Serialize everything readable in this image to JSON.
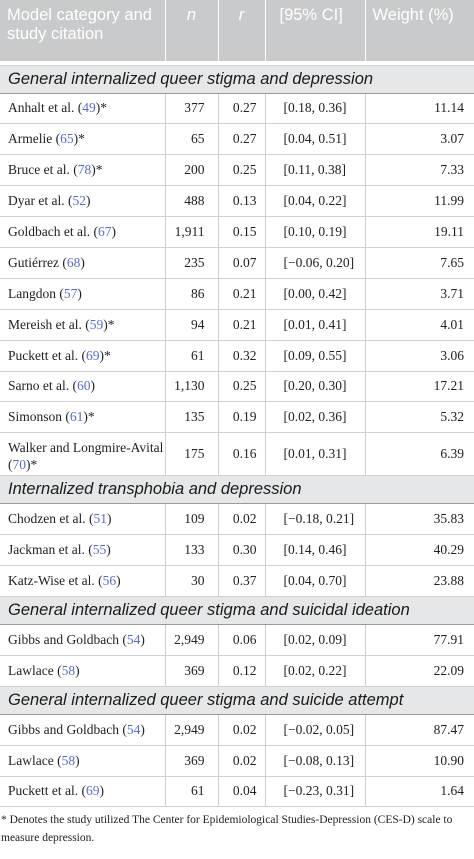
{
  "header": {
    "col1": "Model category and study citation",
    "col2": "n",
    "col3": "r",
    "col4": "[95% CI]",
    "col5": "Weight (%)"
  },
  "sections": [
    {
      "title": "General internalized queer stigma and depression",
      "rows": [
        {
          "name": "Anhalt et al. (",
          "ref": "49",
          "suffix": ")*",
          "n": "377",
          "r": "0.27",
          "ci": "[0.18, 0.36]",
          "weight": "11.14"
        },
        {
          "name": "Armelie (",
          "ref": "65",
          "suffix": ")*",
          "n": "65",
          "r": "0.27",
          "ci": "[0.04, 0.51]",
          "weight": "3.07"
        },
        {
          "name": "Bruce et al. (",
          "ref": "78",
          "suffix": ")*",
          "n": "200",
          "r": "0.25",
          "ci": "[0.11, 0.38]",
          "weight": "7.33"
        },
        {
          "name": "Dyar et al. (",
          "ref": "52",
          "suffix": ")",
          "n": "488",
          "r": "0.13",
          "ci": "[0.04, 0.22]",
          "weight": "11.99"
        },
        {
          "name": "Goldbach et al. (",
          "ref": "67",
          "suffix": ")",
          "n": "1,911",
          "r": "0.15",
          "ci": "[0.10, 0.19]",
          "weight": "19.11"
        },
        {
          "name": "Gutiérrez (",
          "ref": "68",
          "suffix": ")",
          "n": "235",
          "r": "0.07",
          "ci": "[−0.06, 0.20]",
          "weight": "7.65"
        },
        {
          "name": "Langdon (",
          "ref": "57",
          "suffix": ")",
          "n": "86",
          "r": "0.21",
          "ci": "[0.00, 0.42]",
          "weight": "3.71"
        },
        {
          "name": "Mereish et al. (",
          "ref": "59",
          "suffix": ")*",
          "n": "94",
          "r": "0.21",
          "ci": "[0.01, 0.41]",
          "weight": "4.01"
        },
        {
          "name": "Puckett et al. (",
          "ref": "69",
          "suffix": ")*",
          "n": "61",
          "r": "0.32",
          "ci": "[0.09, 0.55]",
          "weight": "3.06"
        },
        {
          "name": "Sarno et al. (",
          "ref": "60",
          "suffix": ")",
          "n": "1,130",
          "r": "0.25",
          "ci": "[0.20, 0.30]",
          "weight": "17.21"
        },
        {
          "name": "Simonson (",
          "ref": "61",
          "suffix": ")*",
          "n": "135",
          "r": "0.19",
          "ci": "[0.02, 0.36]",
          "weight": "5.32"
        },
        {
          "name": "Walker and Longmire-Avital (",
          "ref": "70",
          "suffix": ")*",
          "n": "175",
          "r": "0.16",
          "ci": "[0.01, 0.31]",
          "weight": "6.39"
        }
      ]
    },
    {
      "title": "Internalized transphobia and depression",
      "rows": [
        {
          "name": "Chodzen et al. (",
          "ref": "51",
          "suffix": ")",
          "n": "109",
          "r": "0.02",
          "ci": "[−0.18, 0.21]",
          "weight": "35.83"
        },
        {
          "name": "Jackman et al. (",
          "ref": "55",
          "suffix": ")",
          "n": "133",
          "r": "0.30",
          "ci": "[0.14, 0.46]",
          "weight": "40.29"
        },
        {
          "name": "Katz-Wise et al. (",
          "ref": "56",
          "suffix": ")",
          "n": "30",
          "r": "0.37",
          "ci": "[0.04, 0.70]",
          "weight": "23.88"
        }
      ]
    },
    {
      "title": "General internalized queer stigma and suicidal ideation",
      "rows": [
        {
          "name": "Gibbs and Goldbach (",
          "ref": "54",
          "suffix": ")",
          "n": "2,949",
          "r": "0.06",
          "ci": "[0.02, 0.09]",
          "weight": "77.91"
        },
        {
          "name": "Lawlace (",
          "ref": "58",
          "suffix": ")",
          "n": "369",
          "r": "0.12",
          "ci": "[0.02, 0.22]",
          "weight": "22.09"
        }
      ]
    },
    {
      "title": "General internalized queer stigma and suicide attempt",
      "rows": [
        {
          "name": "Gibbs and Goldbach (",
          "ref": "54",
          "suffix": ")",
          "n": "2,949",
          "r": "0.02",
          "ci": "[−0.02, 0.05]",
          "weight": "87.47"
        },
        {
          "name": "Lawlace (",
          "ref": "58",
          "suffix": ")",
          "n": "369",
          "r": "0.02",
          "ci": "[−0.08, 0.13]",
          "weight": "10.90"
        },
        {
          "name": "Puckett et al. (",
          "ref": "69",
          "suffix": ")",
          "n": "61",
          "r": "0.04",
          "ci": "[−0.23, 0.31]",
          "weight": "1.64"
        }
      ]
    }
  ],
  "footnote": "* Denotes the study utilized The Center for Epidemiological Studies-Depression (CES-D) scale to measure depression."
}
